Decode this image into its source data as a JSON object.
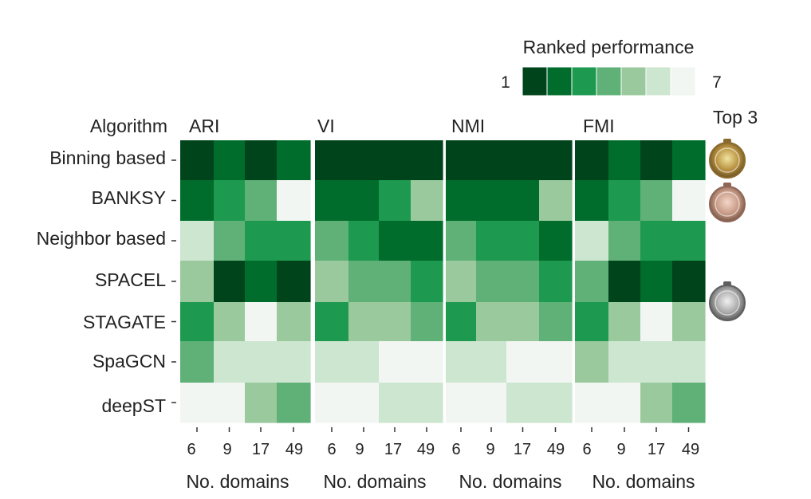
{
  "chart_data": {
    "type": "heatmap",
    "legend": {
      "title": "Ranked performance",
      "min_label": "1",
      "max_label": "7",
      "colors": [
        "#00441b",
        "#006d2c",
        "#1d9a50",
        "#5fb178",
        "#9bc99e",
        "#cde6cf",
        "#f2f6f2"
      ]
    },
    "ylabel": "Algorithm",
    "algorithms": [
      "Binning based",
      "BANKSY",
      "Neighbor based",
      "SPACEL",
      "STAGATE",
      "SpaGCN",
      "deepST"
    ],
    "x_ticks": [
      "6",
      "9",
      "17",
      "49"
    ],
    "xlabel": "No. domains",
    "medal_title": "Top 3",
    "medals": [
      {
        "rank": 1,
        "row": 0,
        "name": "gold-medal-icon"
      },
      {
        "rank": 2,
        "row": 1,
        "name": "bronze-medal-icon"
      },
      {
        "rank": 3,
        "row": 3,
        "name": "silver-medal-icon"
      }
    ],
    "panels": [
      {
        "metric": "ARI",
        "ranks": [
          [
            1,
            2,
            1,
            2
          ],
          [
            2,
            3,
            4,
            7
          ],
          [
            6,
            4,
            3,
            3
          ],
          [
            5,
            1,
            2,
            1
          ],
          [
            3,
            5,
            7,
            5
          ],
          [
            4,
            6,
            6,
            6
          ],
          [
            7,
            7,
            5,
            4
          ]
        ]
      },
      {
        "metric": "VI",
        "ranks": [
          [
            1,
            1,
            1,
            1
          ],
          [
            2,
            2,
            3,
            5
          ],
          [
            4,
            3,
            2,
            2
          ],
          [
            5,
            4,
            4,
            3
          ],
          [
            3,
            5,
            5,
            4
          ],
          [
            6,
            6,
            7,
            7
          ],
          [
            7,
            7,
            6,
            6
          ]
        ]
      },
      {
        "metric": "NMI",
        "ranks": [
          [
            1,
            1,
            1,
            1
          ],
          [
            2,
            2,
            2,
            5
          ],
          [
            4,
            3,
            3,
            2
          ],
          [
            5,
            4,
            4,
            3
          ],
          [
            3,
            5,
            5,
            4
          ],
          [
            6,
            6,
            7,
            7
          ],
          [
            7,
            7,
            6,
            6
          ]
        ]
      },
      {
        "metric": "FMI",
        "ranks": [
          [
            1,
            2,
            1,
            2
          ],
          [
            2,
            3,
            4,
            7
          ],
          [
            6,
            4,
            3,
            3
          ],
          [
            4,
            1,
            2,
            1
          ],
          [
            3,
            5,
            7,
            5
          ],
          [
            5,
            6,
            6,
            6
          ],
          [
            7,
            7,
            5,
            4
          ]
        ]
      }
    ]
  }
}
